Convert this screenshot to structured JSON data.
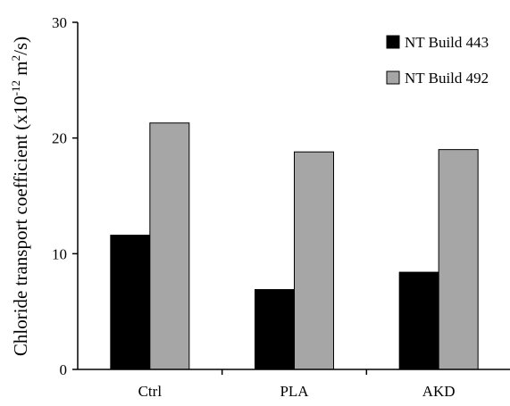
{
  "chart_data": {
    "type": "bar",
    "title": "",
    "xlabel": "",
    "ylabel": "Chloride transport coefficient (x10",
    "ylabel_exponent": "-12",
    "ylabel_unit_pre": " m",
    "ylabel_unit_exponent": "2",
    "ylabel_unit_post": "/s)",
    "categories": [
      "Ctrl",
      "PLA",
      "AKD"
    ],
    "ylim": [
      0,
      30
    ],
    "yticks": [
      0,
      10,
      20,
      30
    ],
    "grid": false,
    "legend_position": "top-right",
    "series": [
      {
        "name": "NT Build 443",
        "color": "#000000",
        "values": [
          11.6,
          6.9,
          8.4
        ]
      },
      {
        "name": "NT Build 492",
        "color": "#a6a6a6",
        "values": [
          21.3,
          18.8,
          19.0
        ]
      }
    ]
  }
}
